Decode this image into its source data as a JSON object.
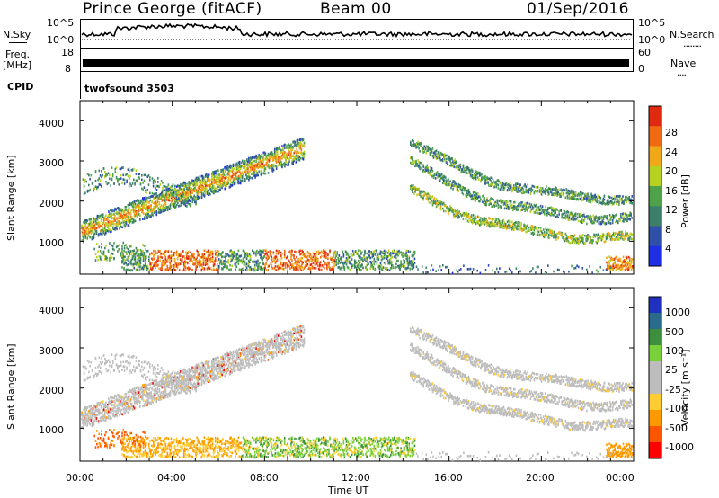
{
  "header": {
    "station": "Prince George (fitACF)",
    "beam": "Beam 00",
    "date": "01/Sep/2016"
  },
  "panels": {
    "nsky_label": "N.Sky",
    "nsearch_label": "N.Search",
    "nsearch_dots": "........",
    "nsky_ticks": [
      "10^5",
      "10^0"
    ],
    "nsearch_ticks": [
      "10^5",
      "10^0"
    ],
    "freq_label": "Freq.",
    "freq_unit": "[MHz]",
    "freq_ticks": [
      "18",
      "8"
    ],
    "nave_label": "Nave",
    "nave_dots": "....",
    "nave_ticks": [
      "60",
      "0"
    ],
    "cpid_label": "CPID",
    "cpid_value": "twofsound 3503"
  },
  "colors": {
    "power_scale": [
      "#1f2fe6",
      "#2f4fa8",
      "#3d7f6b",
      "#4fa24a",
      "#b8d020",
      "#f0a818",
      "#f06a14",
      "#e02a10"
    ],
    "velocity_scale": [
      "#ff0000",
      "#ff5500",
      "#ff9900",
      "#ffcc33",
      "#bdbdbd",
      "#bdbdbd",
      "#7ad03a",
      "#3d8f3d",
      "#2a6a8a",
      "#2230c0"
    ]
  },
  "chart_data": [
    {
      "type": "heatmap",
      "name": "power",
      "xlabel": "",
      "ylabel": "Slant Range [km]",
      "ylim": [
        180,
        4500
      ],
      "xlim": [
        "00:00",
        "24:00"
      ],
      "yticks": [
        "1000",
        "2000",
        "3000",
        "4000"
      ],
      "colorbar": {
        "label": "Power [dB]",
        "ticks": [
          "4",
          "8",
          "12",
          "16",
          "20",
          "24",
          "28"
        ],
        "range": [
          0,
          32
        ]
      },
      "features": [
        {
          "desc": "rising band",
          "start_hour": 0,
          "end_hour": 9.5,
          "start_km": 1200,
          "end_km": 3300
        },
        {
          "desc": "near range band",
          "start_hour": 2,
          "end_hour": 14,
          "km": 450
        },
        {
          "desc": "post-dusk bands",
          "start_hour": 14.5,
          "end_hour": 24,
          "start_km": 3500,
          "end_km": 1100
        }
      ]
    },
    {
      "type": "heatmap",
      "name": "velocity",
      "xlabel": "Time UT",
      "ylabel": "Slant Range [km]",
      "ylim": [
        180,
        4500
      ],
      "xlim": [
        "00:00",
        "24:00"
      ],
      "yticks": [
        "1000",
        "2000",
        "3000",
        "4000"
      ],
      "xticks": [
        "00:00",
        "04:00",
        "08:00",
        "12:00",
        "16:00",
        "20:00",
        "00:00"
      ],
      "colorbar": {
        "label": "Velocity [m s⁻¹]",
        "ticks": [
          "1000",
          "500",
          "100",
          "25",
          "-25",
          "-100",
          "-500",
          "-1000"
        ],
        "range": [
          -1000,
          1000
        ]
      }
    }
  ]
}
